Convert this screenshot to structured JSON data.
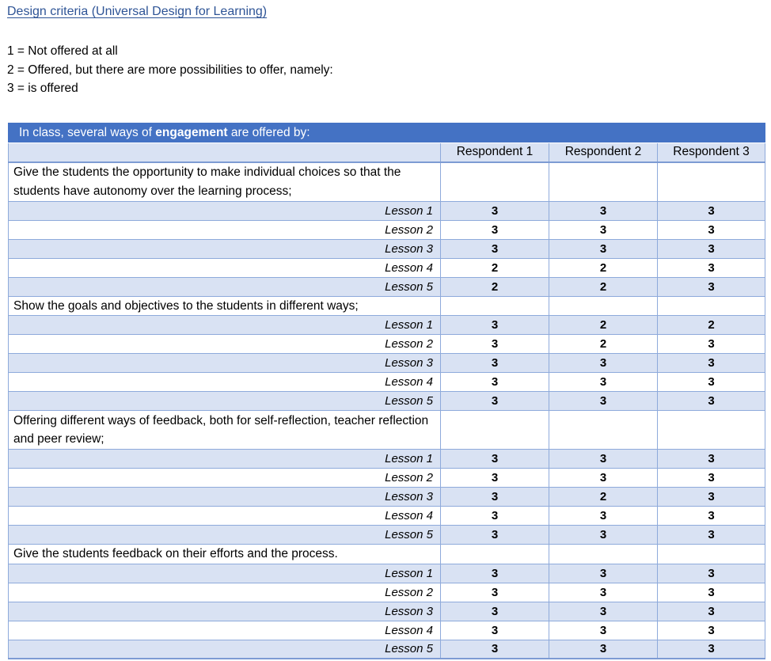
{
  "page": {
    "title_link": "Design criteria (Universal Design for Learning)",
    "legend": [
      "1 = Not offered at all",
      "2 = Offered, but there are more possibilities to offer, namely:",
      "3 = is offered"
    ]
  },
  "colors": {
    "header_blue": "#4472C4",
    "band_light_blue": "#D9E2F3",
    "cell_border": "#8EAADB",
    "table_bottom_border": "#7D9BD3",
    "title_link_blue": "#2E5496"
  },
  "table": {
    "banner": {
      "prefix": "In class, several ways of ",
      "bold_word": "engagement",
      "suffix": " are offered by:"
    },
    "columns": [
      "Respondent 1",
      "Respondent 2",
      "Respondent 3"
    ],
    "groups": [
      {
        "criterion": "Give the students the opportunity to make individual choices so that the students have autonomy over the learning process;",
        "two_line": true,
        "lessons": [
          {
            "label": "Lesson 1",
            "scores": [
              "3",
              "3",
              "3"
            ]
          },
          {
            "label": "Lesson 2",
            "scores": [
              "3",
              "3",
              "3"
            ]
          },
          {
            "label": "Lesson 3",
            "scores": [
              "3",
              "3",
              "3"
            ]
          },
          {
            "label": "Lesson 4",
            "scores": [
              "2",
              "2",
              "3"
            ]
          },
          {
            "label": "Lesson 5",
            "scores": [
              "2",
              "2",
              "3"
            ]
          }
        ]
      },
      {
        "criterion": "Show the goals and objectives to the students in different ways;",
        "two_line": false,
        "lessons": [
          {
            "label": "Lesson 1",
            "scores": [
              "3",
              "2",
              "2"
            ]
          },
          {
            "label": "Lesson 2",
            "scores": [
              "3",
              "2",
              "3"
            ]
          },
          {
            "label": "Lesson 3",
            "scores": [
              "3",
              "3",
              "3"
            ]
          },
          {
            "label": "Lesson 4",
            "scores": [
              "3",
              "3",
              "3"
            ]
          },
          {
            "label": "Lesson 5",
            "scores": [
              "3",
              "3",
              "3"
            ]
          }
        ]
      },
      {
        "criterion": "Offering different ways of feedback, both for self-reflection, teacher reflection and peer review;",
        "two_line": true,
        "lessons": [
          {
            "label": "Lesson 1",
            "scores": [
              "3",
              "3",
              "3"
            ]
          },
          {
            "label": "Lesson 2",
            "scores": [
              "3",
              "3",
              "3"
            ]
          },
          {
            "label": "Lesson 3",
            "scores": [
              "3",
              "2",
              "3"
            ]
          },
          {
            "label": "Lesson 4",
            "scores": [
              "3",
              "3",
              "3"
            ]
          },
          {
            "label": "Lesson 5",
            "scores": [
              "3",
              "3",
              "3"
            ]
          }
        ]
      },
      {
        "criterion": "Give the students feedback on their efforts and the process.",
        "two_line": false,
        "lessons": [
          {
            "label": "Lesson 1",
            "scores": [
              "3",
              "3",
              "3"
            ]
          },
          {
            "label": "Lesson 2",
            "scores": [
              "3",
              "3",
              "3"
            ]
          },
          {
            "label": "Lesson 3",
            "scores": [
              "3",
              "3",
              "3"
            ]
          },
          {
            "label": "Lesson 4",
            "scores": [
              "3",
              "3",
              "3"
            ]
          },
          {
            "label": "Lesson 5",
            "scores": [
              "3",
              "3",
              "3"
            ]
          }
        ]
      }
    ]
  }
}
